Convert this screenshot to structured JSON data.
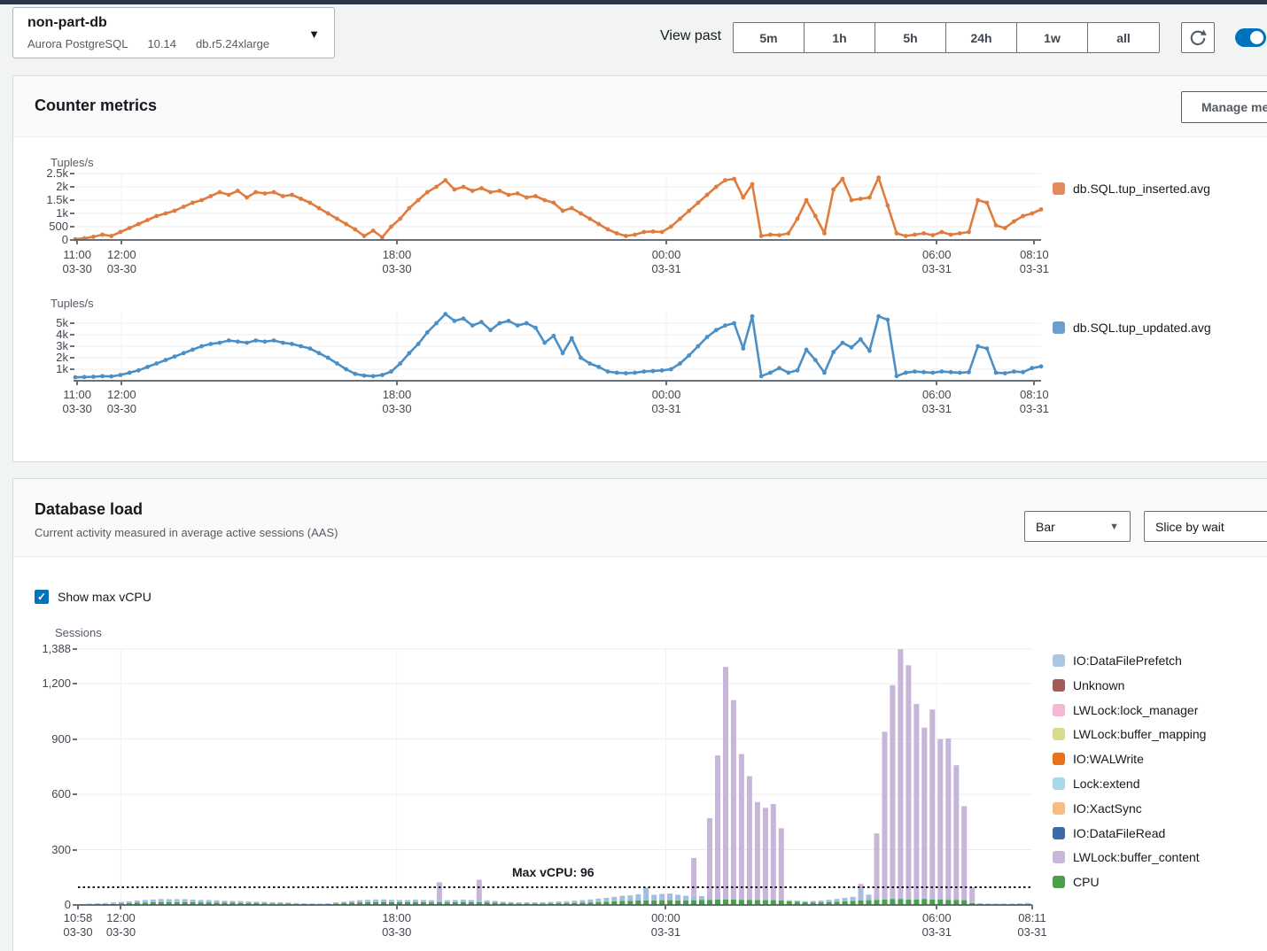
{
  "header": {
    "db": {
      "name": "non-part-db",
      "engine": "Aurora PostgreSQL",
      "version": "10.14",
      "instance_class": "db.r5.24xlarge"
    },
    "view_past_label": "View past",
    "time_buttons": [
      "5m",
      "1h",
      "5h",
      "24h",
      "1w",
      "all"
    ],
    "toggle_on": true
  },
  "counter_metrics": {
    "title": "Counter metrics",
    "manage_button": "Manage metrics"
  },
  "database_load": {
    "title": "Database load",
    "subtitle": "Current activity measured in average active sessions (AAS)",
    "chart_type_value": "Bar",
    "slice_by_value": "Slice by wait",
    "show_max_vcpu_label": "Show max vCPU",
    "show_max_vcpu_checked": true,
    "max_vcpu_annotation": "Max vCPU: 96"
  },
  "chart_data": [
    {
      "id": "tup_inserted",
      "type": "line",
      "ylabel": "Tuples/s",
      "ymax": 2500,
      "yticks": [
        {
          "label": "2.5k",
          "value": 2500
        },
        {
          "label": "2k",
          "value": 2000
        },
        {
          "label": "1.5k",
          "value": 1500
        },
        {
          "label": "1k",
          "value": 1000
        },
        {
          "label": "500",
          "value": 500
        },
        {
          "label": "0",
          "value": 0
        }
      ],
      "xticks": [
        {
          "time": "11:00",
          "date": "03-30",
          "f": 0.002
        },
        {
          "time": "12:00",
          "date": "03-30",
          "f": 0.048
        },
        {
          "time": "18:00",
          "date": "03-30",
          "f": 0.333
        },
        {
          "time": "00:00",
          "date": "03-31",
          "f": 0.612
        },
        {
          "time": "06:00",
          "date": "03-31",
          "f": 0.892
        },
        {
          "time": "08:10",
          "date": "03-31",
          "f": 0.993
        }
      ],
      "series": [
        {
          "name": "db.SQL.tup_inserted.avg",
          "color": "#e07c3e",
          "values": [
            30,
            60,
            120,
            200,
            150,
            300,
            450,
            600,
            750,
            900,
            1000,
            1100,
            1250,
            1400,
            1500,
            1650,
            1800,
            1700,
            1850,
            1600,
            1800,
            1750,
            1800,
            1650,
            1700,
            1550,
            1400,
            1200,
            1000,
            800,
            600,
            400,
            150,
            350,
            100,
            500,
            800,
            1200,
            1500,
            1800,
            2000,
            2250,
            1900,
            2000,
            1850,
            1950,
            1800,
            1850,
            1700,
            1750,
            1600,
            1650,
            1500,
            1400,
            1100,
            1200,
            1000,
            800,
            600,
            400,
            250,
            150,
            200,
            300,
            320,
            300,
            500,
            800,
            1100,
            1400,
            1700,
            2000,
            2250,
            2300,
            1600,
            2100,
            150,
            200,
            180,
            250,
            800,
            1500,
            900,
            250,
            1900,
            2300,
            1500,
            1550,
            1600,
            2350,
            1300,
            250,
            150,
            200,
            250,
            180,
            300,
            200,
            250,
            300,
            1500,
            1400,
            550,
            450,
            700,
            900,
            1000,
            1150
          ]
        }
      ]
    },
    {
      "id": "tup_updated",
      "type": "line",
      "ylabel": "Tuples/s",
      "ymax": 6000,
      "yticks": [
        {
          "label": "5k",
          "value": 5000
        },
        {
          "label": "4k",
          "value": 4000
        },
        {
          "label": "3k",
          "value": 3000
        },
        {
          "label": "2k",
          "value": 2000
        },
        {
          "label": "1k",
          "value": 1000
        }
      ],
      "xticks": [
        {
          "time": "11:00",
          "date": "03-30",
          "f": 0.002
        },
        {
          "time": "12:00",
          "date": "03-30",
          "f": 0.048
        },
        {
          "time": "18:00",
          "date": "03-30",
          "f": 0.333
        },
        {
          "time": "00:00",
          "date": "03-31",
          "f": 0.612
        },
        {
          "time": "06:00",
          "date": "03-31",
          "f": 0.892
        },
        {
          "time": "08:10",
          "date": "03-31",
          "f": 0.993
        }
      ],
      "series": [
        {
          "name": "db.SQL.tup_updated.avg",
          "color": "#4b8fc7",
          "values": [
            300,
            320,
            350,
            400,
            380,
            500,
            700,
            900,
            1200,
            1500,
            1800,
            2100,
            2400,
            2700,
            3000,
            3200,
            3300,
            3500,
            3400,
            3300,
            3500,
            3400,
            3500,
            3300,
            3200,
            3000,
            2800,
            2400,
            2000,
            1500,
            1000,
            600,
            450,
            400,
            500,
            800,
            1500,
            2400,
            3200,
            4200,
            5000,
            5800,
            5200,
            5400,
            4800,
            5100,
            4400,
            5000,
            5200,
            4800,
            5000,
            4600,
            3300,
            3900,
            2400,
            3700,
            2000,
            1500,
            1200,
            800,
            700,
            650,
            700,
            800,
            850,
            900,
            1000,
            1500,
            2200,
            3000,
            3800,
            4400,
            4800,
            5000,
            2800,
            5600,
            400,
            700,
            1100,
            700,
            900,
            2700,
            1800,
            700,
            2500,
            3300,
            2900,
            3600,
            2600,
            5600,
            5300,
            400,
            700,
            800,
            750,
            700,
            800,
            750,
            700,
            750,
            3000,
            2800,
            700,
            650,
            800,
            750,
            1100,
            1250
          ]
        }
      ]
    },
    {
      "id": "db_load",
      "type": "stacked-bar",
      "ylabel": "Sessions",
      "ymax": 1388,
      "max_vcpu": 96,
      "yticks": [
        {
          "label": "1,388",
          "value": 1388
        },
        {
          "label": "1,200",
          "value": 1200
        },
        {
          "label": "900",
          "value": 900
        },
        {
          "label": "600",
          "value": 600
        },
        {
          "label": "300",
          "value": 300
        },
        {
          "label": "0",
          "value": 0
        }
      ],
      "xticks": [
        {
          "time": "10:58",
          "date": "03-30",
          "f": 0.0
        },
        {
          "time": "12:00",
          "date": "03-30",
          "f": 0.045
        },
        {
          "time": "18:00",
          "date": "03-30",
          "f": 0.334
        },
        {
          "time": "00:00",
          "date": "03-31",
          "f": 0.616
        },
        {
          "time": "06:00",
          "date": "03-31",
          "f": 0.9
        },
        {
          "time": "08:11",
          "date": "03-31",
          "f": 1.0
        }
      ],
      "series": [
        {
          "name": "CPU",
          "color": "#4aa14a",
          "values": [
            2,
            3,
            4,
            5,
            6,
            8,
            10,
            12,
            13,
            15,
            16,
            16,
            15,
            16,
            15,
            14,
            14,
            13,
            12,
            12,
            11,
            10,
            10,
            9,
            8,
            8,
            7,
            6,
            5,
            4,
            4,
            5,
            8,
            10,
            12,
            14,
            15,
            16,
            16,
            15,
            15,
            15,
            16,
            15,
            14,
            15,
            14,
            15,
            16,
            15,
            15,
            14,
            12,
            10,
            9,
            8,
            8,
            8,
            8,
            9,
            10,
            10,
            11,
            12,
            14,
            16,
            18,
            20,
            22,
            22,
            24,
            24,
            25,
            26,
            26,
            25,
            24,
            26,
            28,
            28,
            30,
            30,
            30,
            28,
            28,
            27,
            26,
            26,
            25,
            20,
            18,
            15,
            14,
            14,
            16,
            18,
            20,
            22,
            24,
            26,
            28,
            30,
            32,
            32,
            30,
            30,
            32,
            30,
            30,
            28,
            28,
            26,
            10,
            6,
            5,
            4,
            4,
            4,
            5,
            6
          ]
        },
        {
          "name": "IO:DataFilePrefetch",
          "color": "#a3bede",
          "values": [
            3,
            4,
            5,
            6,
            8,
            9,
            10,
            12,
            14,
            15,
            16,
            15,
            16,
            15,
            14,
            13,
            13,
            12,
            11,
            10,
            10,
            9,
            8,
            8,
            7,
            7,
            6,
            5,
            4,
            4,
            3,
            4,
            6,
            8,
            10,
            12,
            13,
            14,
            14,
            13,
            12,
            12,
            13,
            12,
            12,
            13,
            12,
            12,
            13,
            12,
            12,
            11,
            10,
            8,
            7,
            6,
            6,
            6,
            7,
            8,
            9,
            10,
            12,
            14,
            16,
            18,
            20,
            24,
            28,
            30,
            34,
            70,
            30,
            34,
            36,
            30,
            26,
            24,
            20,
            8,
            6,
            6,
            6,
            6,
            6,
            6,
            6,
            6,
            6,
            6,
            6,
            6,
            8,
            10,
            12,
            14,
            18,
            22,
            60,
            30,
            8,
            8,
            8,
            8,
            8,
            8,
            8,
            8,
            8,
            8,
            8,
            8,
            6,
            4,
            3,
            3,
            3,
            3,
            4,
            5
          ]
        },
        {
          "name": "LWLock:buffer_content",
          "color": "#c7b5da",
          "values": [
            0,
            0,
            0,
            0,
            0,
            0,
            0,
            0,
            0,
            0,
            0,
            0,
            0,
            0,
            0,
            0,
            0,
            0,
            0,
            0,
            0,
            0,
            0,
            0,
            0,
            0,
            0,
            0,
            0,
            0,
            0,
            0,
            0,
            0,
            0,
            0,
            0,
            0,
            0,
            0,
            0,
            0,
            0,
            0,
            0,
            95,
            0,
            0,
            0,
            0,
            110,
            0,
            0,
            0,
            0,
            0,
            0,
            0,
            0,
            0,
            0,
            0,
            0,
            0,
            0,
            0,
            0,
            0,
            0,
            0,
            0,
            0,
            0,
            0,
            0,
            0,
            0,
            205,
            0,
            435,
            775,
            1255,
            1075,
            785,
            665,
            525,
            495,
            515,
            385,
            0,
            0,
            0,
            0,
            0,
            0,
            0,
            0,
            0,
            30,
            0,
            352,
            902,
            1152,
            1350,
            1262,
            1052,
            922,
            1022,
            862,
            867,
            722,
            502,
            80,
            0,
            0,
            0,
            0,
            0,
            0,
            0
          ]
        }
      ],
      "legend": [
        {
          "name": "IO:DataFilePrefetch",
          "color": "#adc6e8"
        },
        {
          "name": "Unknown",
          "color": "#a25b5b"
        },
        {
          "name": "LWLock:lock_manager",
          "color": "#f3b8d3"
        },
        {
          "name": "LWLock:buffer_mapping",
          "color": "#d9dc8e"
        },
        {
          "name": "IO:WALWrite",
          "color": "#e8711c"
        },
        {
          "name": "Lock:extend",
          "color": "#a8d9e8"
        },
        {
          "name": "IO:XactSync",
          "color": "#f7bd80"
        },
        {
          "name": "IO:DataFileRead",
          "color": "#3a6ba5"
        },
        {
          "name": "LWLock:buffer_content",
          "color": "#c7b5da"
        },
        {
          "name": "CPU",
          "color": "#4aa14a"
        }
      ]
    }
  ]
}
